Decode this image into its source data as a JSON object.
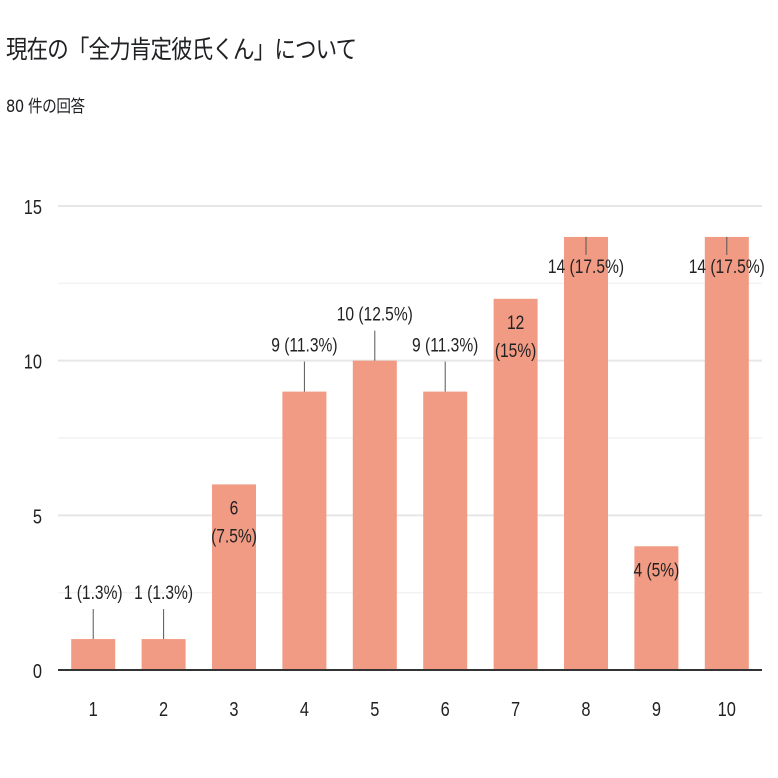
{
  "header": {
    "title": "現在の「全力肯定彼氏くん」について",
    "subtitle": "80 件の回答"
  },
  "colors": {
    "bar": "#f19a84",
    "grid_major": "#e6e6e6",
    "grid_minor": "#f2f2f2",
    "axis": "#333333",
    "leader": "#555555"
  },
  "chart_data": {
    "type": "bar",
    "title": "",
    "xlabel": "",
    "ylabel": "",
    "categories": [
      "1",
      "2",
      "3",
      "4",
      "5",
      "6",
      "7",
      "8",
      "9",
      "10"
    ],
    "values": [
      1,
      1,
      6,
      9,
      10,
      9,
      12,
      14,
      4,
      14
    ],
    "labels": [
      [
        "1 (1.3%)"
      ],
      [
        "1 (1.3%)"
      ],
      [
        "6",
        "(7.5%)"
      ],
      [
        "9 (11.3%)"
      ],
      [
        "10 (12.5%)"
      ],
      [
        "9 (11.3%)"
      ],
      [
        "12",
        "(15%)"
      ],
      [
        "14 (17.5%)"
      ],
      [
        "4 (5%)"
      ],
      [
        "14 (17.5%)"
      ]
    ],
    "ylim": [
      0,
      15
    ],
    "yticks": [
      0,
      5,
      10,
      15
    ],
    "grid": true,
    "legend": "none"
  }
}
